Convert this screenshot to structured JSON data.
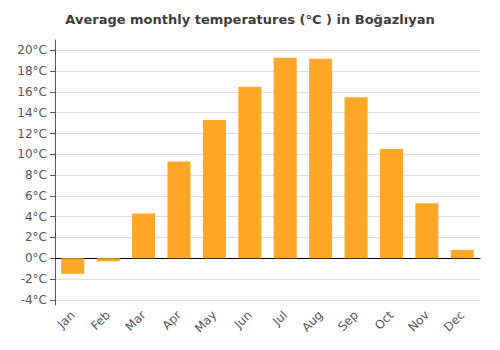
{
  "chart_data": {
    "type": "bar",
    "title": "Average monthly temperatures (°C ) in Boğazlıyan",
    "categories": [
      "Jan",
      "Feb",
      "Mar",
      "Apr",
      "May",
      "Jun",
      "Jul",
      "Aug",
      "Sep",
      "Oct",
      "Nov",
      "Dec"
    ],
    "values": [
      -1.5,
      -0.3,
      4.3,
      9.3,
      13.3,
      16.5,
      19.3,
      19.2,
      15.5,
      10.5,
      5.3,
      0.8
    ],
    "color": "#FFA726",
    "ylim": [
      -4.5,
      21
    ],
    "yticks": [
      {
        "value": -4,
        "label": "-4°C"
      },
      {
        "value": -2,
        "label": "-2°C"
      },
      {
        "value": 0,
        "label": "0°C"
      },
      {
        "value": 2,
        "label": "2°C"
      },
      {
        "value": 4,
        "label": "4°C"
      },
      {
        "value": 6,
        "label": "6°C"
      },
      {
        "value": 8,
        "label": "8°C"
      },
      {
        "value": 10,
        "label": "10°C"
      },
      {
        "value": 12,
        "label": "12°C"
      },
      {
        "value": 14,
        "label": "14°C"
      },
      {
        "value": 16,
        "label": "16°C"
      },
      {
        "value": 18,
        "label": "18°C"
      },
      {
        "value": 20,
        "label": "20°C"
      }
    ],
    "grid": true
  }
}
